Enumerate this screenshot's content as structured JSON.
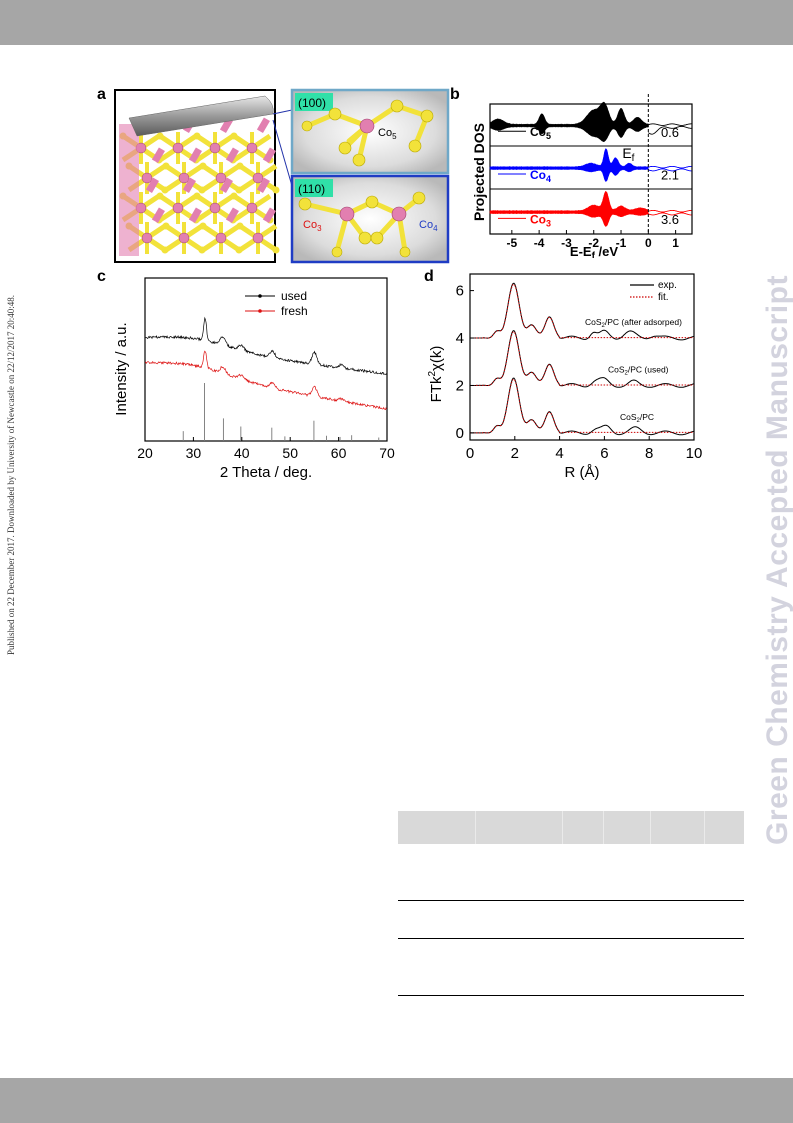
{
  "side_stamp": "Published on 22 December 2017. Downloaded by University of Newcastle on 22/12/2017 20:40:48.",
  "watermark": "Green Chemistry Accepted Manuscript",
  "panels": {
    "a": {
      "letter": "a",
      "inset_100": "(100)",
      "inset_110": "(110)",
      "co5": "Co5",
      "co3": "Co3",
      "co4": "Co4"
    },
    "b": {
      "letter": "b"
    },
    "c": {
      "letter": "c"
    },
    "d": {
      "letter": "d"
    }
  },
  "colors": {
    "band": "#a6a6a6",
    "watermark": "#d3d3de",
    "sulfur": "#f2e23a",
    "cobalt": "#e27fb0",
    "inset_label": "#30e0a8"
  },
  "chart_data": [
    {
      "id": "b",
      "type": "area",
      "ylabel": "Projected DOS",
      "xlabel": "E-Ef /eV",
      "xlim": [
        -5.8,
        1.6
      ],
      "xticks": [
        -5,
        -4,
        -3,
        -2,
        -1,
        0,
        1
      ],
      "fermi_label": "Ef",
      "fermi_x": 0,
      "series": [
        {
          "name": "Co5",
          "color": "#000000",
          "value_label": "0.6"
        },
        {
          "name": "Co4",
          "color": "#0000ff",
          "value_label": "2.1"
        },
        {
          "name": "Co3",
          "color": "#ff0000",
          "value_label": "3.6"
        }
      ]
    },
    {
      "id": "c",
      "type": "line",
      "xlabel": "2 Theta / deg.",
      "ylabel": "Intensity / a.u.",
      "xlim": [
        20,
        70
      ],
      "xticks": [
        20,
        30,
        40,
        50,
        60,
        70
      ],
      "series": [
        {
          "name": "used",
          "color": "#000000"
        },
        {
          "name": "fresh",
          "color": "#dd1111"
        }
      ],
      "reference_peaks": [
        {
          "x": 27.9,
          "h": 0.17
        },
        {
          "x": 32.3,
          "h": 1.0
        },
        {
          "x": 36.2,
          "h": 0.39
        },
        {
          "x": 39.8,
          "h": 0.25
        },
        {
          "x": 46.2,
          "h": 0.23
        },
        {
          "x": 48.9,
          "h": 0.08
        },
        {
          "x": 54.9,
          "h": 0.35
        },
        {
          "x": 57.5,
          "h": 0.09
        },
        {
          "x": 60.3,
          "h": 0.07
        },
        {
          "x": 62.7,
          "h": 0.1
        },
        {
          "x": 68.3,
          "h": 0.06
        }
      ]
    },
    {
      "id": "d",
      "type": "line",
      "xlabel": "R (Å)",
      "ylabel": "FTk²χ(k)",
      "xlim": [
        0,
        10
      ],
      "ylim": [
        -0.3,
        6.7
      ],
      "xticks": [
        0,
        2,
        4,
        6,
        8,
        10
      ],
      "yticks": [
        0,
        2,
        4,
        6
      ],
      "legend": [
        {
          "name": "exp.",
          "color": "#000000",
          "style": "solid"
        },
        {
          "name": "fit.",
          "color": "#cc0000",
          "style": "dotted"
        }
      ],
      "series": [
        {
          "name": "CoS2/PC (after adsorped)",
          "offset": 4
        },
        {
          "name": "CoS2/PC (used)",
          "offset": 2
        },
        {
          "name": "CoS2/PC",
          "offset": 0
        }
      ]
    }
  ]
}
